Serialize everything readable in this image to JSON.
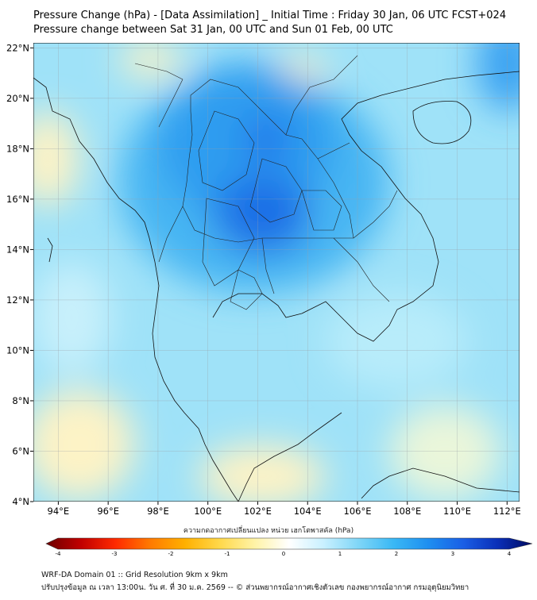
{
  "header": {
    "title_line1": "Pressure Change (hPa) - [Data Assimilation] _ Initial Time : Friday 30 Jan, 06 UTC FCST+024",
    "title_line2": "Pressure change between Sat 31 Jan, 00 UTC and Sun 01 Feb, 00 UTC"
  },
  "map": {
    "lon_labels": [
      "94°E",
      "96°E",
      "98°E",
      "100°E",
      "102°E",
      "104°E",
      "106°E",
      "108°E",
      "110°E",
      "112°E"
    ],
    "lat_labels": [
      "22°N",
      "20°N",
      "18°N",
      "16°N",
      "14°N",
      "12°N",
      "10°N",
      "8°N",
      "6°N",
      "4°N"
    ],
    "lon_range": [
      93,
      112.5
    ],
    "lat_range": [
      4,
      22.2
    ],
    "field_palette": {
      "deep_blue": "#2f6fe8",
      "mid_blue": "#3aa7f2",
      "light_cyan": "#7fd6f7",
      "pale_cyan": "#bdebfa",
      "pale_yellow": "#fdf3c6"
    }
  },
  "colorbar": {
    "label": "ความกดอากาศเปลี่ยนแปลง หน่วย เฮกโตพาสคัล (hPa)",
    "ticks": [
      "-4",
      "-3",
      "-2",
      "-1",
      "0",
      "1",
      "2",
      "3",
      "4"
    ],
    "range": [
      -4,
      4
    ],
    "colors": [
      "#6b0000",
      "#c00000",
      "#ff2a00",
      "#ff7a00",
      "#ffb000",
      "#ffd84a",
      "#fff3a6",
      "#ffffff",
      "#c8f0ff",
      "#7fd6f7",
      "#3ab8f5",
      "#1e8ff0",
      "#1a5fe6",
      "#0a2fb8",
      "#000a60"
    ]
  },
  "footer": {
    "line1": "WRF-DA Domain 01 :: Grid Resolution 9km x 9km",
    "line2": "ปรับปรุงข้อมูล ณ เวลา 13:00น. วัน ศ. ที่ 30 ม.ค. 2569 -- © ส่วนพยากรณ์อากาศเชิงตัวเลข กองพยากรณ์อากาศ กรมอุตุนิยมวิทยา"
  }
}
